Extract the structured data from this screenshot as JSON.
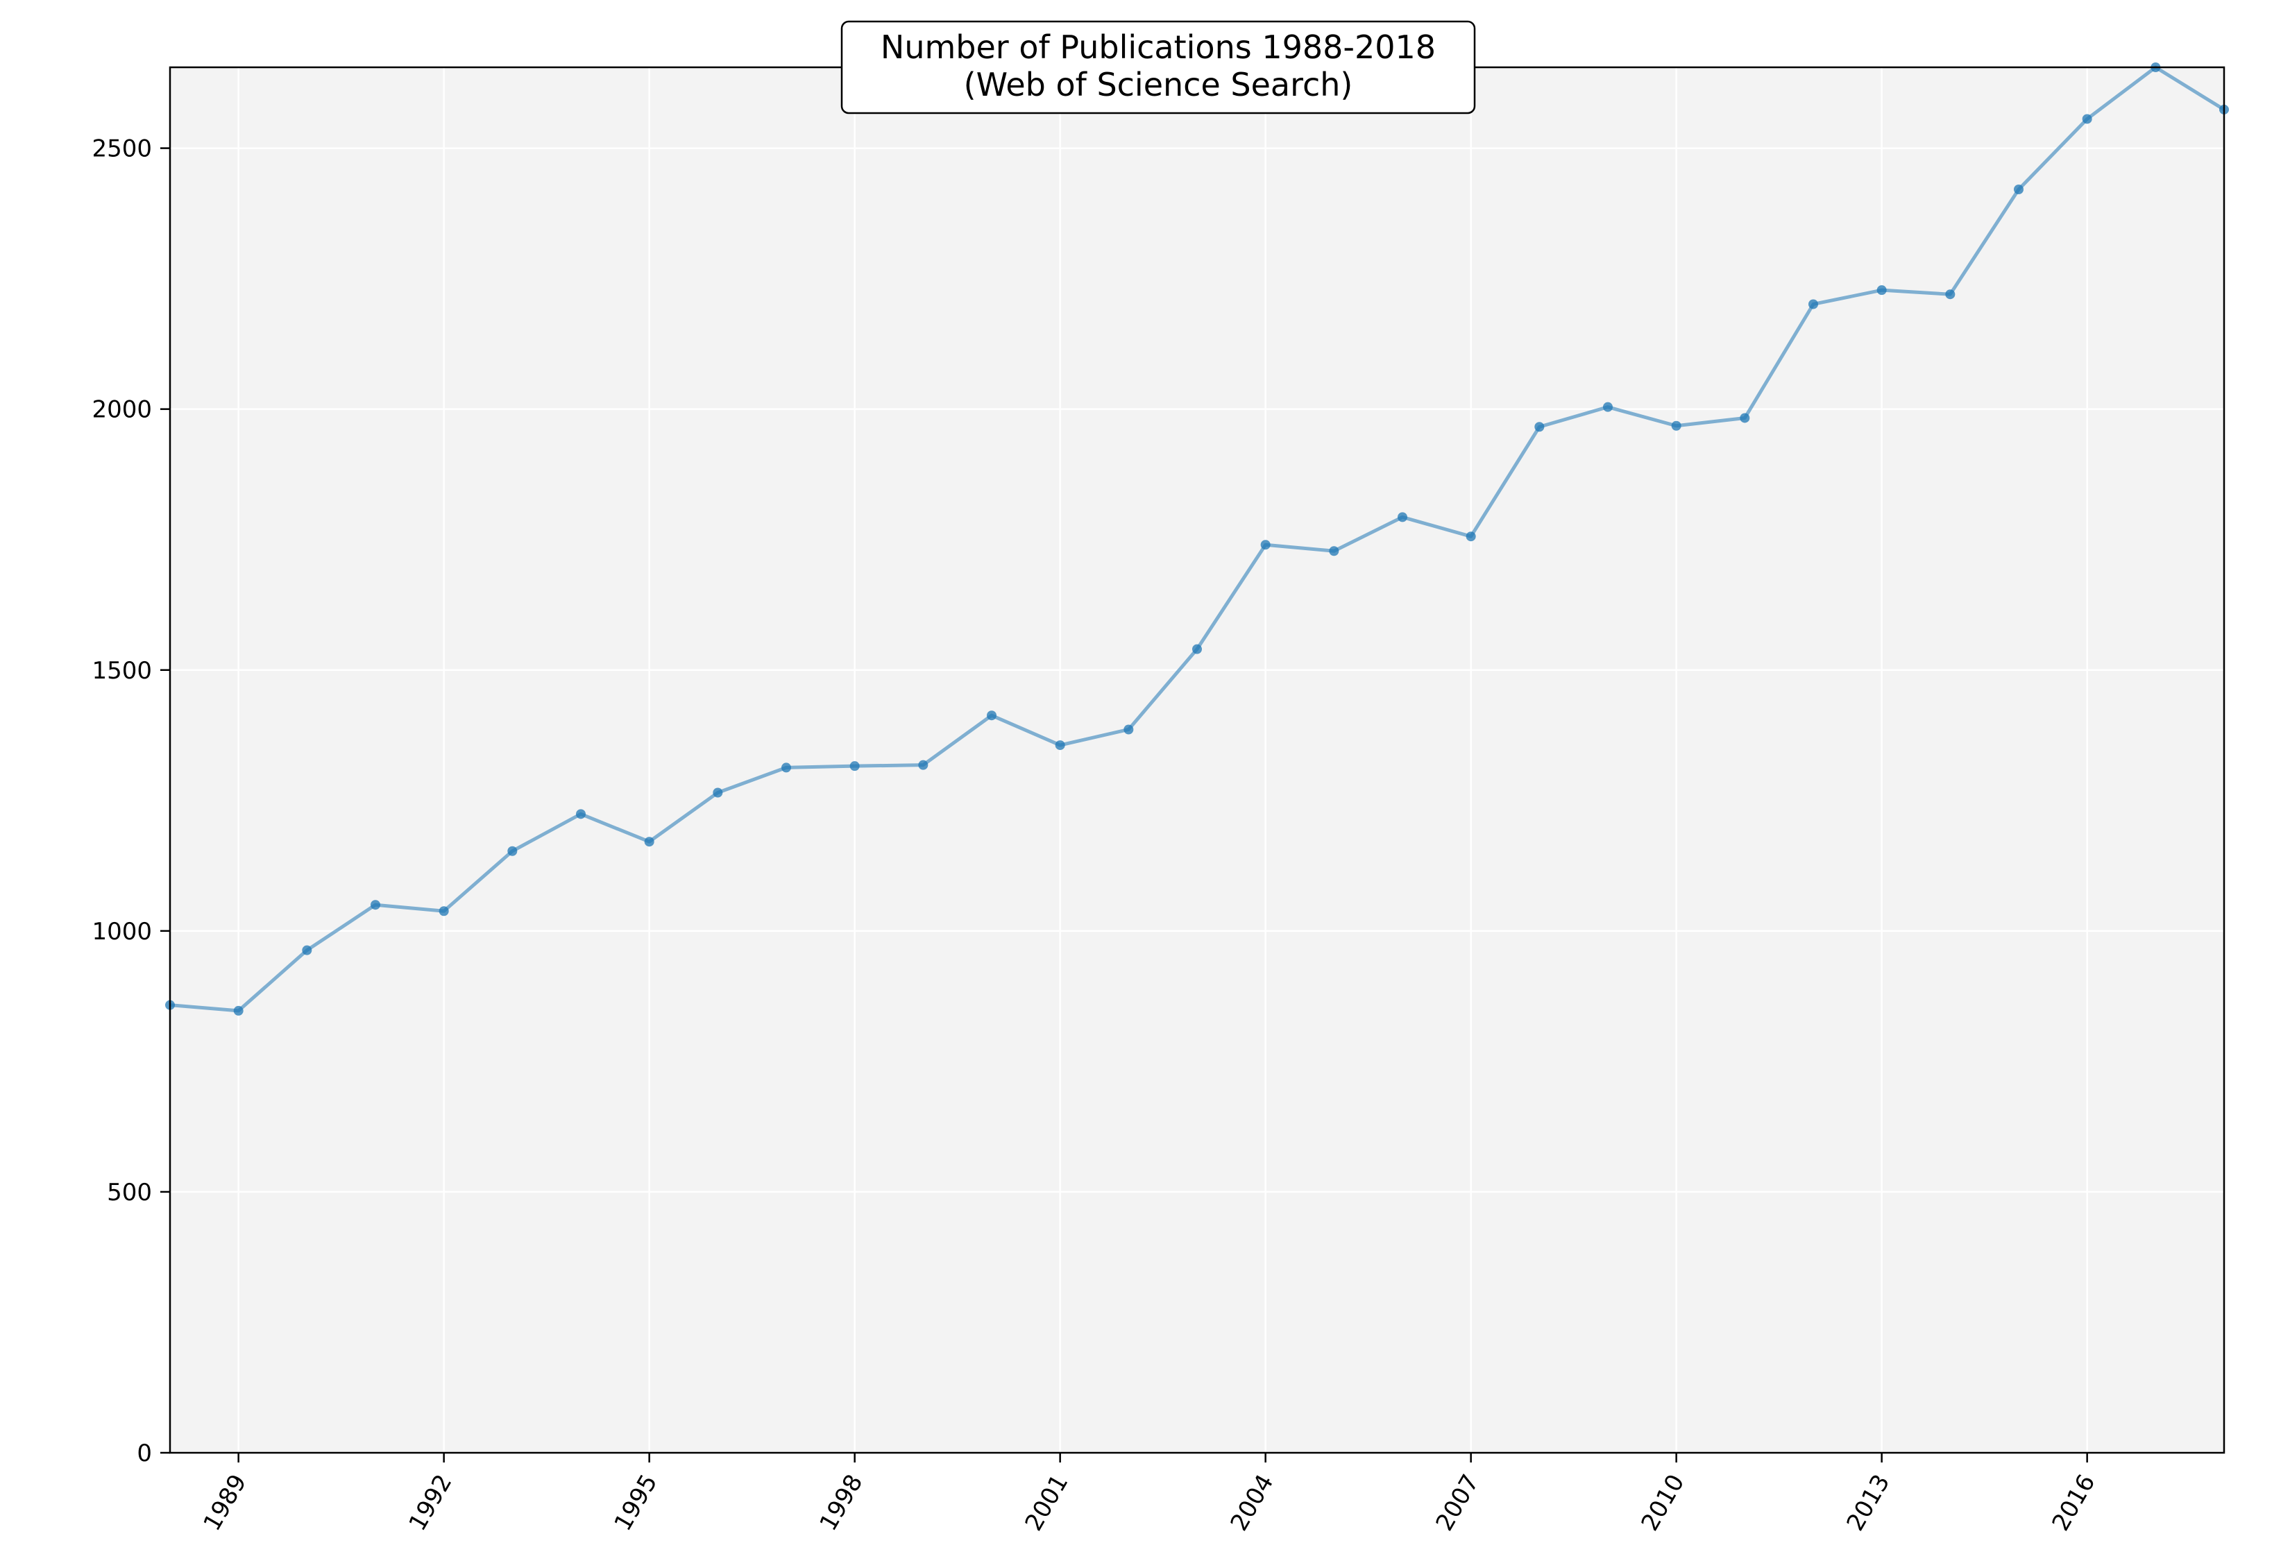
{
  "chart_data": {
    "type": "line",
    "title": "Number of Publications 1988-2018\n(Web of Science Search)",
    "title_lines": [
      "Number of Publications 1988-2018",
      "(Web of Science Search)"
    ],
    "xlabel": "",
    "ylabel": "",
    "xlim": [
      1988,
      2018
    ],
    "ylim": [
      0,
      2655
    ],
    "x_ticks": [
      1989,
      1992,
      1995,
      1998,
      2001,
      2004,
      2007,
      2010,
      2013,
      2016
    ],
    "y_ticks": [
      0,
      500,
      1000,
      1500,
      2000,
      2500
    ],
    "grid": true,
    "legend": "none",
    "colors": {
      "line": "#1f77b4",
      "plot_background": "#f3f3f3",
      "grid": "#ffffff"
    },
    "series": [
      {
        "x": [
          1988,
          1989,
          1990,
          1991,
          1992,
          1993,
          1994,
          1995,
          1996,
          1997,
          1998,
          1999,
          2000,
          2001,
          2002,
          2003,
          2004,
          2005,
          2006,
          2007,
          2008,
          2009,
          2010,
          2011,
          2012,
          2013,
          2014,
          2015,
          2016,
          2017,
          2018
        ],
        "values": [
          858,
          847,
          963,
          1050,
          1038,
          1153,
          1224,
          1171,
          1265,
          1313,
          1316,
          1318,
          1413,
          1356,
          1386,
          1540,
          1740,
          1728,
          1793,
          1756,
          1966,
          2004,
          1968,
          1983,
          2201,
          2228,
          2220,
          2421,
          2556,
          2655,
          2574
        ]
      }
    ]
  }
}
